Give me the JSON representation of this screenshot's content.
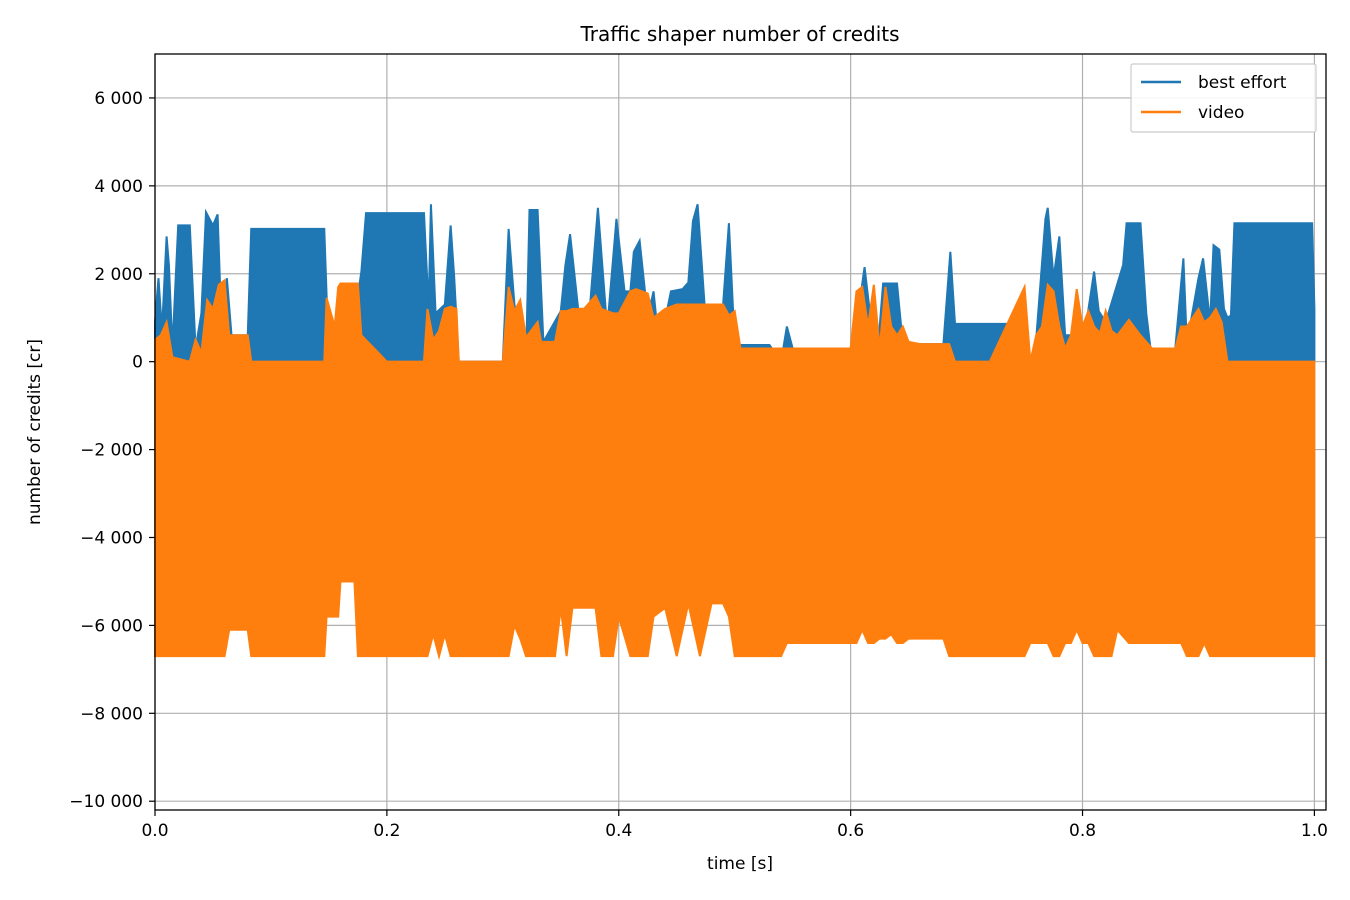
{
  "chart_data": {
    "type": "line",
    "title": "Traffic shaper number of credits",
    "xlabel": "time [s]",
    "ylabel": "number of credits [cr]",
    "xlim": [
      0.0,
      1.01
    ],
    "ylim": [
      -10200,
      7000
    ],
    "grid": true,
    "legend_position": "top-right",
    "x_ticks": [
      0.0,
      0.2,
      0.4,
      0.6,
      0.8,
      1.0
    ],
    "x_tick_labels": [
      "0.0",
      "0.2",
      "0.4",
      "0.6",
      "0.8",
      "1.0"
    ],
    "y_ticks": [
      6000,
      4000,
      2000,
      0,
      -2000,
      -4000,
      -6000,
      -8000,
      -10000
    ],
    "y_tick_labels": [
      "6 000",
      "4 000",
      "2 000",
      "0",
      "−2 000",
      "−4 000",
      "−6 000",
      "−8 000",
      "−10 000"
    ],
    "series": [
      {
        "name": "best effort",
        "color": "#1f77b4",
        "envelope": [
          [
            0.0,
            0,
            900
          ],
          [
            0.003,
            0,
            1900
          ],
          [
            0.006,
            0,
            700
          ],
          [
            0.01,
            0,
            2850
          ],
          [
            0.012,
            0,
            2200
          ],
          [
            0.015,
            0,
            300
          ],
          [
            0.02,
            0,
            3100
          ],
          [
            0.03,
            0,
            3100
          ],
          [
            0.035,
            0,
            300
          ],
          [
            0.04,
            0,
            1100
          ],
          [
            0.044,
            0,
            3400
          ],
          [
            0.05,
            0,
            3100
          ],
          [
            0.054,
            0,
            3350
          ],
          [
            0.058,
            0,
            300
          ],
          [
            0.062,
            0,
            1900
          ],
          [
            0.066,
            0,
            600
          ],
          [
            0.08,
            0,
            600
          ],
          [
            0.083,
            0,
            3020
          ],
          [
            0.1,
            0,
            3020
          ],
          [
            0.12,
            0,
            3020
          ],
          [
            0.146,
            0,
            3020
          ],
          [
            0.15,
            0,
            0
          ],
          [
            0.16,
            0,
            800
          ],
          [
            0.175,
            0,
            1500
          ],
          [
            0.178,
            0,
            2050
          ],
          [
            0.182,
            0,
            3380
          ],
          [
            0.2,
            0,
            3380
          ],
          [
            0.22,
            0,
            3380
          ],
          [
            0.232,
            0,
            3380
          ],
          [
            0.236,
            0,
            1200
          ],
          [
            0.238,
            0,
            3580
          ],
          [
            0.242,
            0,
            1100
          ],
          [
            0.25,
            0,
            1300
          ],
          [
            0.255,
            0,
            3100
          ],
          [
            0.258,
            0,
            1950
          ],
          [
            0.262,
            0,
            0
          ],
          [
            0.3,
            0,
            0
          ],
          [
            0.305,
            0,
            3020
          ],
          [
            0.31,
            0,
            1300
          ],
          [
            0.32,
            0,
            0
          ],
          [
            0.323,
            0,
            3450
          ],
          [
            0.33,
            0,
            3450
          ],
          [
            0.335,
            0,
            450
          ],
          [
            0.35,
            0,
            1150
          ],
          [
            0.354,
            0,
            2200
          ],
          [
            0.358,
            0,
            2900
          ],
          [
            0.365,
            0,
            1200
          ],
          [
            0.375,
            0,
            1200
          ],
          [
            0.382,
            0,
            3500
          ],
          [
            0.39,
            0,
            750
          ],
          [
            0.398,
            0,
            3250
          ],
          [
            0.405,
            0,
            1600
          ],
          [
            0.41,
            0,
            1600
          ],
          [
            0.413,
            0,
            2500
          ],
          [
            0.418,
            0,
            2750
          ],
          [
            0.425,
            0,
            1000
          ],
          [
            0.43,
            0,
            1600
          ],
          [
            0.435,
            0,
            300
          ],
          [
            0.445,
            0,
            1600
          ],
          [
            0.455,
            0,
            1650
          ],
          [
            0.46,
            0,
            1800
          ],
          [
            0.464,
            0,
            3200
          ],
          [
            0.468,
            0,
            3580
          ],
          [
            0.474,
            0,
            1300
          ],
          [
            0.49,
            0,
            1300
          ],
          [
            0.495,
            0,
            3150
          ],
          [
            0.5,
            0,
            380
          ],
          [
            0.53,
            0,
            380
          ],
          [
            0.54,
            0,
            0
          ],
          [
            0.545,
            0,
            800
          ],
          [
            0.55,
            0,
            300
          ],
          [
            0.58,
            0,
            300
          ],
          [
            0.6,
            0,
            300
          ],
          [
            0.607,
            0,
            1200
          ],
          [
            0.612,
            0,
            2150
          ],
          [
            0.618,
            0,
            800
          ],
          [
            0.624,
            0,
            450
          ],
          [
            0.628,
            0,
            1780
          ],
          [
            0.64,
            0,
            1780
          ],
          [
            0.645,
            0,
            400
          ],
          [
            0.66,
            0,
            400
          ],
          [
            0.68,
            0,
            400
          ],
          [
            0.686,
            0,
            2500
          ],
          [
            0.69,
            0,
            860
          ],
          [
            0.72,
            0,
            860
          ],
          [
            0.75,
            0,
            860
          ],
          [
            0.755,
            0,
            0
          ],
          [
            0.76,
            0,
            500
          ],
          [
            0.768,
            0,
            3250
          ],
          [
            0.77,
            0,
            3500
          ],
          [
            0.775,
            0,
            1900
          ],
          [
            0.78,
            0,
            2850
          ],
          [
            0.785,
            0,
            600
          ],
          [
            0.795,
            0,
            600
          ],
          [
            0.8,
            0,
            300
          ],
          [
            0.81,
            0,
            2050
          ],
          [
            0.814,
            0,
            1150
          ],
          [
            0.82,
            0,
            900
          ],
          [
            0.835,
            0,
            2200
          ],
          [
            0.838,
            0,
            3150
          ],
          [
            0.85,
            0,
            3150
          ],
          [
            0.855,
            0,
            1100
          ],
          [
            0.86,
            0,
            0
          ],
          [
            0.88,
            0,
            300
          ],
          [
            0.887,
            0,
            2350
          ],
          [
            0.89,
            0,
            400
          ],
          [
            0.9,
            0,
            1900
          ],
          [
            0.904,
            0,
            2350
          ],
          [
            0.91,
            0,
            900
          ],
          [
            0.913,
            0,
            2650
          ],
          [
            0.918,
            0,
            2550
          ],
          [
            0.922,
            0,
            1200
          ],
          [
            0.925,
            0,
            1000
          ],
          [
            0.928,
            0,
            1050
          ],
          [
            0.931,
            0,
            3150
          ],
          [
            0.96,
            0,
            3150
          ],
          [
            0.98,
            0,
            3150
          ],
          [
            0.998,
            0,
            3150
          ],
          [
            1.0,
            0,
            1200
          ]
        ]
      },
      {
        "name": "video",
        "color": "#ff7f0e",
        "envelope": [
          [
            0.0,
            -6700,
            500
          ],
          [
            0.005,
            -6700,
            600
          ],
          [
            0.01,
            -6700,
            900
          ],
          [
            0.015,
            -6700,
            100
          ],
          [
            0.03,
            -6700,
            0
          ],
          [
            0.035,
            -6700,
            500
          ],
          [
            0.04,
            -6700,
            200
          ],
          [
            0.045,
            -6700,
            1400
          ],
          [
            0.05,
            -6700,
            1200
          ],
          [
            0.055,
            -6700,
            1750
          ],
          [
            0.06,
            -6700,
            1850
          ],
          [
            0.064,
            -6100,
            600
          ],
          [
            0.08,
            -6100,
            600
          ],
          [
            0.083,
            -6700,
            0
          ],
          [
            0.12,
            -6700,
            0
          ],
          [
            0.146,
            -6700,
            0
          ],
          [
            0.148,
            -5800,
            1450
          ],
          [
            0.155,
            -5800,
            800
          ],
          [
            0.158,
            -5800,
            1700
          ],
          [
            0.16,
            -5000,
            1780
          ],
          [
            0.172,
            -5000,
            1780
          ],
          [
            0.175,
            -6700,
            1780
          ],
          [
            0.178,
            -6700,
            600
          ],
          [
            0.2,
            -6700,
            0
          ],
          [
            0.232,
            -6700,
            0
          ],
          [
            0.235,
            -6700,
            1200
          ],
          [
            0.24,
            -6200,
            500
          ],
          [
            0.245,
            -6700,
            700
          ],
          [
            0.25,
            -6200,
            1200
          ],
          [
            0.255,
            -6700,
            1250
          ],
          [
            0.26,
            -6700,
            1200
          ],
          [
            0.262,
            -6700,
            0
          ],
          [
            0.3,
            -6700,
            0
          ],
          [
            0.305,
            -6700,
            1700
          ],
          [
            0.31,
            -6000,
            1150
          ],
          [
            0.315,
            -6300,
            1400
          ],
          [
            0.32,
            -6700,
            550
          ],
          [
            0.33,
            -6700,
            900
          ],
          [
            0.333,
            -6700,
            450
          ],
          [
            0.345,
            -6700,
            450
          ],
          [
            0.35,
            -5600,
            1150
          ],
          [
            0.355,
            -6700,
            1150
          ],
          [
            0.36,
            -5600,
            1200
          ],
          [
            0.365,
            -5600,
            1200
          ],
          [
            0.37,
            -5600,
            1200
          ],
          [
            0.38,
            -5600,
            1500
          ],
          [
            0.385,
            -6700,
            1200
          ],
          [
            0.395,
            -6700,
            1100
          ],
          [
            0.4,
            -5800,
            1100
          ],
          [
            0.41,
            -6700,
            1600
          ],
          [
            0.415,
            -6700,
            1650
          ],
          [
            0.425,
            -6700,
            1550
          ],
          [
            0.43,
            -5800,
            1000
          ],
          [
            0.44,
            -5600,
            1200
          ],
          [
            0.45,
            -6700,
            1300
          ],
          [
            0.46,
            -5500,
            1300
          ],
          [
            0.47,
            -6700,
            1300
          ],
          [
            0.48,
            -5500,
            1300
          ],
          [
            0.49,
            -5500,
            1300
          ],
          [
            0.495,
            -5800,
            1050
          ],
          [
            0.5,
            -6700,
            1150
          ],
          [
            0.505,
            -6700,
            300
          ],
          [
            0.52,
            -6700,
            300
          ],
          [
            0.54,
            -6700,
            300
          ],
          [
            0.545,
            -6400,
            300
          ],
          [
            0.57,
            -6400,
            300
          ],
          [
            0.6,
            -6400,
            300
          ],
          [
            0.605,
            -6400,
            1600
          ],
          [
            0.61,
            -6100,
            1700
          ],
          [
            0.615,
            -6400,
            800
          ],
          [
            0.62,
            -6400,
            1750
          ],
          [
            0.625,
            -6300,
            300
          ],
          [
            0.63,
            -6300,
            1700
          ],
          [
            0.635,
            -6200,
            800
          ],
          [
            0.64,
            -6400,
            600
          ],
          [
            0.645,
            -6400,
            800
          ],
          [
            0.65,
            -6300,
            450
          ],
          [
            0.66,
            -6300,
            400
          ],
          [
            0.68,
            -6300,
            400
          ],
          [
            0.685,
            -6700,
            400
          ],
          [
            0.69,
            -6700,
            0
          ],
          [
            0.72,
            -6700,
            0
          ],
          [
            0.75,
            -6700,
            1700
          ],
          [
            0.755,
            -6400,
            0
          ],
          [
            0.76,
            -6400,
            600
          ],
          [
            0.765,
            -6400,
            800
          ],
          [
            0.77,
            -6400,
            1750
          ],
          [
            0.775,
            -6700,
            1600
          ],
          [
            0.78,
            -6700,
            800
          ],
          [
            0.785,
            -6400,
            300
          ],
          [
            0.79,
            -6400,
            600
          ],
          [
            0.795,
            -6100,
            1650
          ],
          [
            0.8,
            -6400,
            800
          ],
          [
            0.805,
            -6400,
            1150
          ],
          [
            0.81,
            -6700,
            800
          ],
          [
            0.815,
            -6700,
            650
          ],
          [
            0.82,
            -6700,
            1150
          ],
          [
            0.825,
            -6700,
            700
          ],
          [
            0.83,
            -6100,
            600
          ],
          [
            0.84,
            -6400,
            950
          ],
          [
            0.85,
            -6400,
            600
          ],
          [
            0.86,
            -6400,
            300
          ],
          [
            0.88,
            -6400,
            300
          ],
          [
            0.885,
            -6400,
            800
          ],
          [
            0.89,
            -6700,
            800
          ],
          [
            0.9,
            -6700,
            1200
          ],
          [
            0.905,
            -6400,
            900
          ],
          [
            0.91,
            -6700,
            1000
          ],
          [
            0.915,
            -6700,
            1200
          ],
          [
            0.92,
            -6700,
            900
          ],
          [
            0.925,
            -6700,
            0
          ],
          [
            0.96,
            -6700,
            0
          ],
          [
            0.98,
            -6700,
            0
          ],
          [
            1.0,
            -6700,
            0
          ]
        ]
      }
    ]
  }
}
